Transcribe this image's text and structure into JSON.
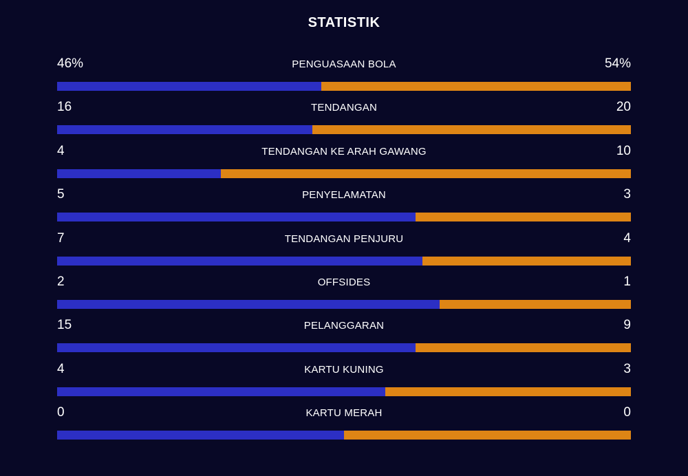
{
  "title": "STATISTIK",
  "colors": {
    "background": "#080826",
    "home": "#2c2fc4",
    "away": "#de8515",
    "text": "#ffffff"
  },
  "stats": [
    {
      "label": "PENGUASAAN BOLA",
      "home": "46%",
      "away": "54%",
      "home_value": 46,
      "away_value": 54
    },
    {
      "label": "TENDANGAN",
      "home": "16",
      "away": "20",
      "home_value": 16,
      "away_value": 20
    },
    {
      "label": "TENDANGAN KE ARAH GAWANG",
      "home": "4",
      "away": "10",
      "home_value": 4,
      "away_value": 10
    },
    {
      "label": "PENYELAMATAN",
      "home": "5",
      "away": "3",
      "home_value": 5,
      "away_value": 3
    },
    {
      "label": "TENDANGAN PENJURU",
      "home": "7",
      "away": "4",
      "home_value": 7,
      "away_value": 4
    },
    {
      "label": "OFFSIDES",
      "home": "2",
      "away": "1",
      "home_value": 2,
      "away_value": 1
    },
    {
      "label": "PELANGGARAN",
      "home": "15",
      "away": "9",
      "home_value": 15,
      "away_value": 9
    },
    {
      "label": "KARTU KUNING",
      "home": "4",
      "away": "3",
      "home_value": 4,
      "away_value": 3
    },
    {
      "label": "KARTU MERAH",
      "home": "0",
      "away": "0",
      "home_value": 0,
      "away_value": 0
    }
  ]
}
